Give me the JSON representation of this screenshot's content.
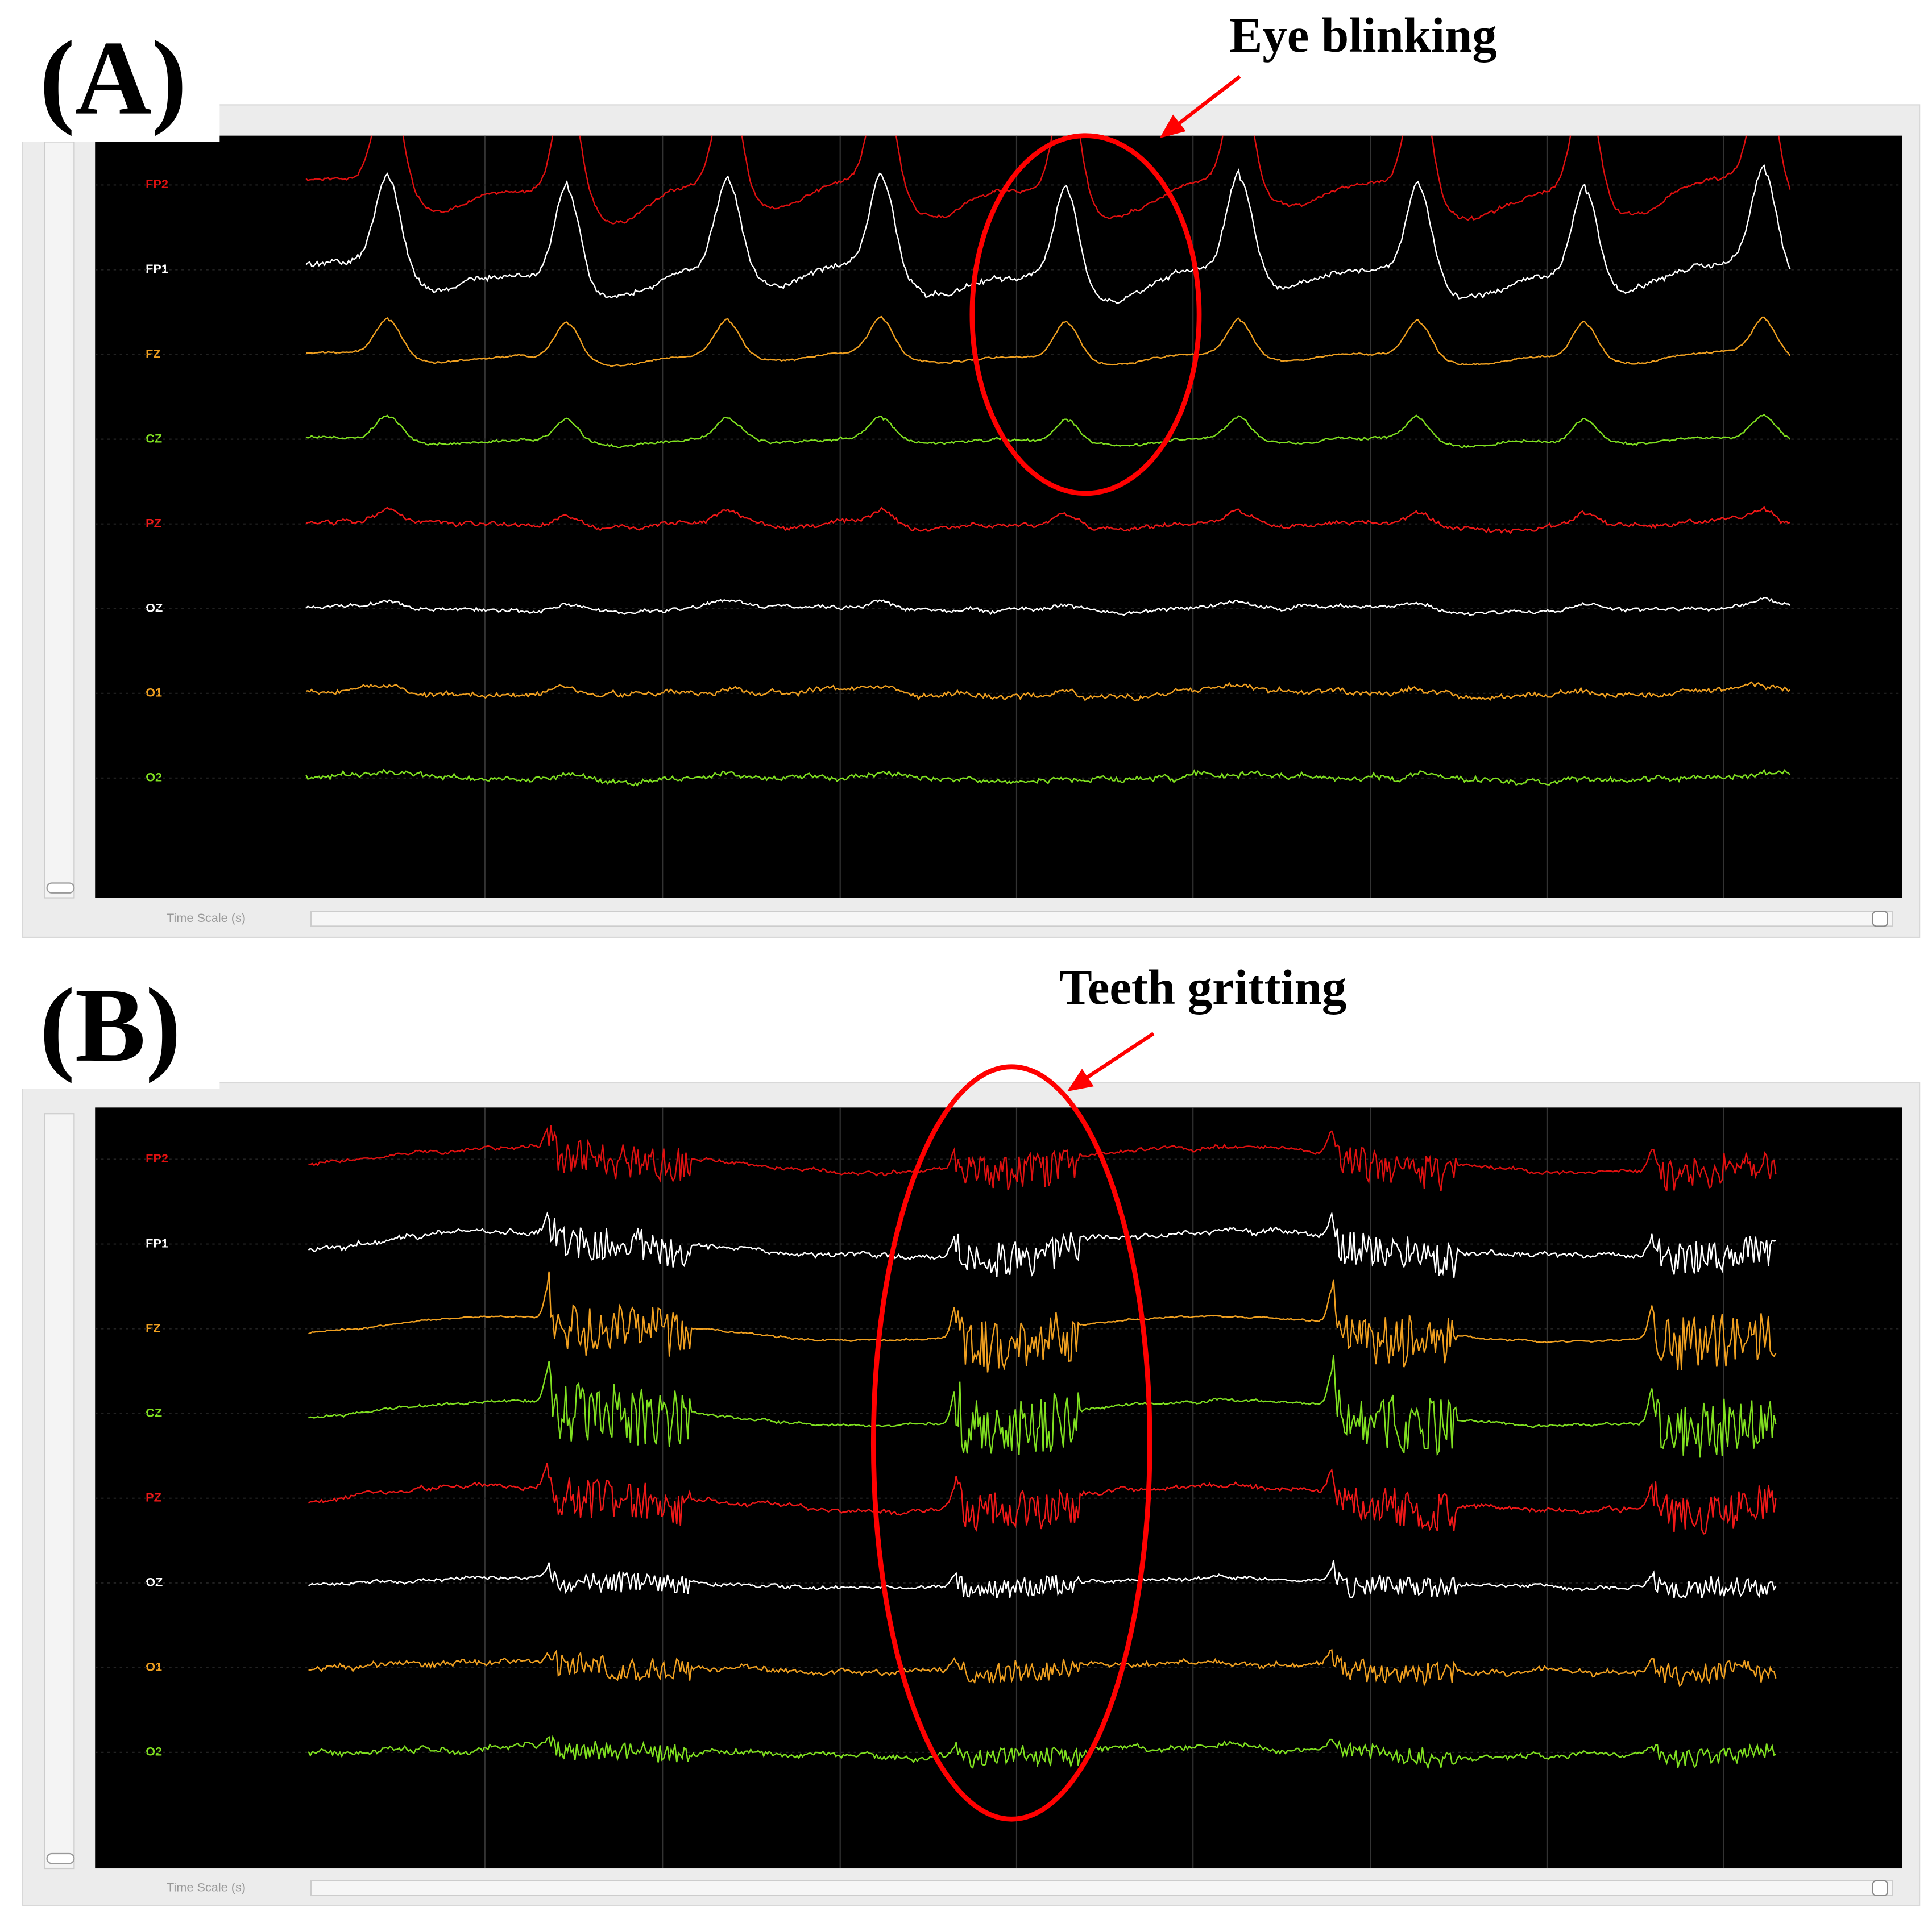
{
  "panels": [
    {
      "label": "(A)",
      "annotation": "Eye blinking",
      "channels": [
        "FP2",
        "FP1",
        "FZ",
        "CZ",
        "PZ",
        "OZ",
        "O1",
        "O2"
      ],
      "time_scale_label": "Time Scale (s)"
    },
    {
      "label": "(B)",
      "annotation": "Teeth gritting",
      "channels": [
        "FP2",
        "FP1",
        "FZ",
        "CZ",
        "PZ",
        "OZ",
        "O1",
        "O2"
      ],
      "time_scale_label": "Time Scale (s)"
    }
  ]
}
